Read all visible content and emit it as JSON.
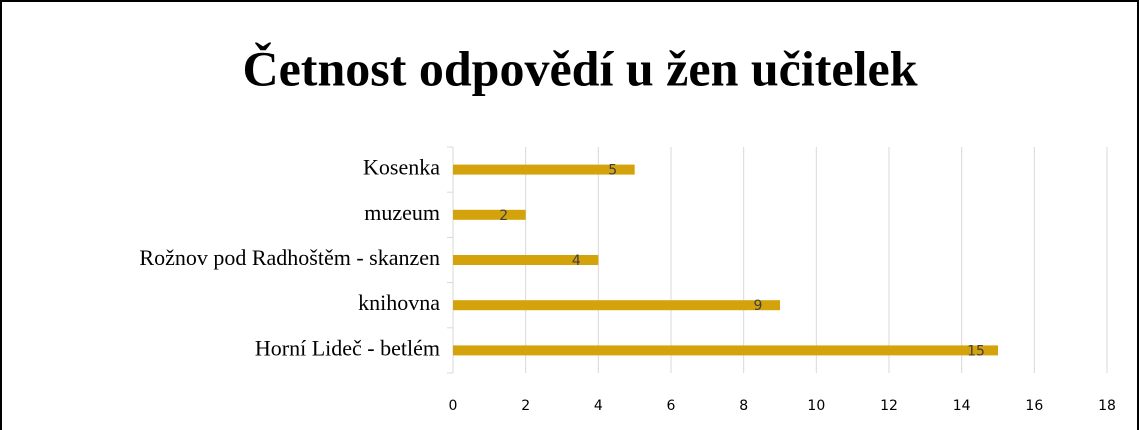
{
  "chart_data": {
    "type": "barh",
    "title": "Četnost odpovědí u žen učitelek",
    "categories": [
      "Kosenka",
      "muzeum",
      "Rožnov pod Radhoštěm - skanzen",
      "knihovna",
      "Horní Lideč - betlém"
    ],
    "values": [
      5,
      2,
      4,
      9,
      15
    ],
    "color": "#d4a20a",
    "xlim": [
      0,
      18
    ],
    "xticks": [
      0,
      2,
      4,
      6,
      8,
      10,
      12,
      14,
      16,
      18
    ],
    "grid": true
  }
}
